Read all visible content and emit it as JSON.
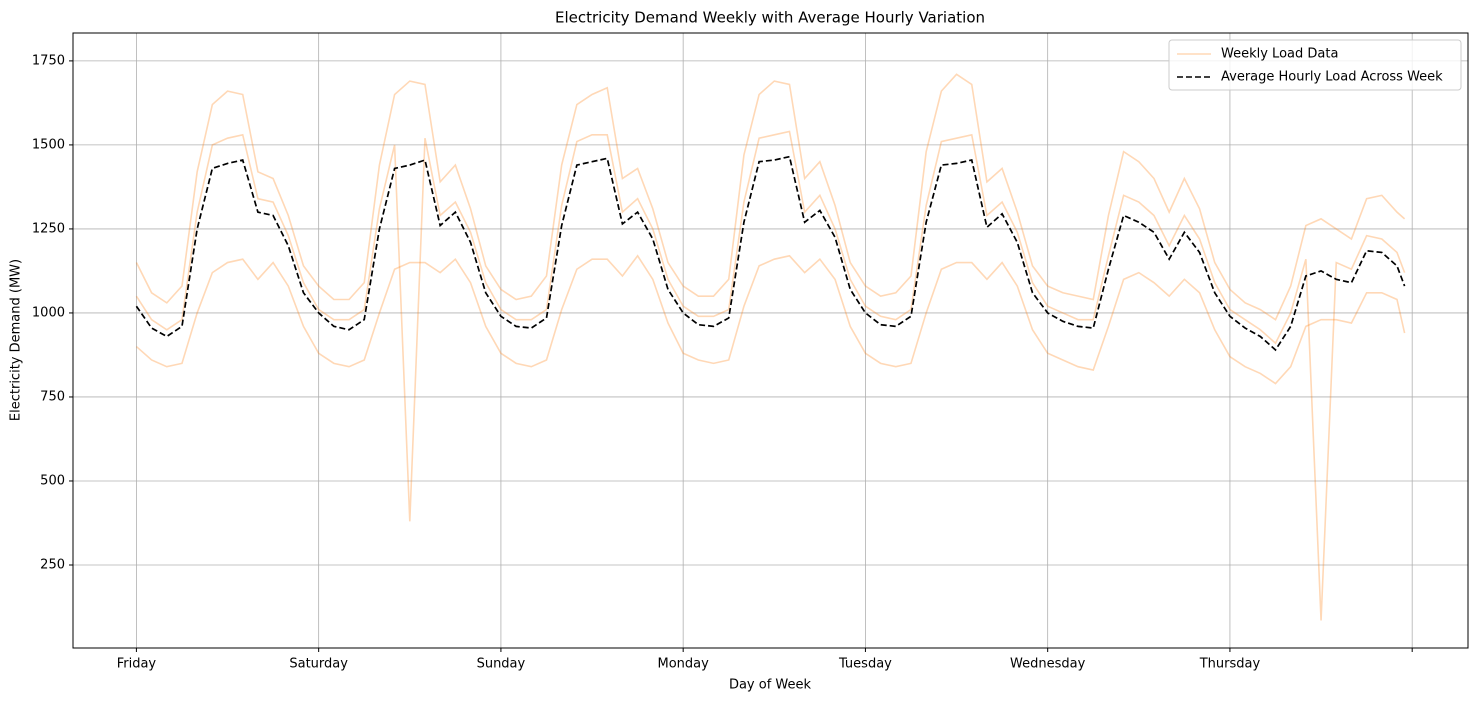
{
  "chart_data": {
    "type": "line",
    "title": "Electricity Demand Weekly with Average Hourly Variation",
    "xlabel": "Day of Week",
    "ylabel": "Electricity Demand (MW)",
    "x": [
      0,
      2,
      4,
      6,
      8,
      10,
      12,
      14,
      16,
      18,
      20,
      22,
      24,
      26,
      28,
      30,
      32,
      34,
      36,
      38,
      40,
      42,
      44,
      46,
      48,
      50,
      52,
      54,
      56,
      58,
      60,
      62,
      64,
      66,
      68,
      70,
      72,
      74,
      76,
      78,
      80,
      82,
      84,
      86,
      88,
      90,
      92,
      94,
      96,
      98,
      100,
      102,
      104,
      106,
      108,
      110,
      112,
      114,
      116,
      118,
      120,
      122,
      124,
      126,
      128,
      130,
      132,
      134,
      136,
      138,
      140,
      142,
      144,
      146,
      148,
      150,
      152,
      154,
      156,
      158,
      160,
      162,
      164,
      166,
      167
    ],
    "xlim": [
      -8.35,
      175.35
    ],
    "xticks": [
      {
        "value": 0,
        "label": "Friday"
      },
      {
        "value": 24,
        "label": "Saturday"
      },
      {
        "value": 48,
        "label": "Sunday"
      },
      {
        "value": 72,
        "label": "Monday"
      },
      {
        "value": 96,
        "label": "Tuesday"
      },
      {
        "value": 120,
        "label": "Wednesday"
      },
      {
        "value": 144,
        "label": "Thursday"
      },
      {
        "value": 168,
        "label": null
      }
    ],
    "ylim": [
      3,
      1833
    ],
    "yticks": [
      250,
      500,
      750,
      1000,
      1250,
      1500,
      1750
    ],
    "grid": true,
    "legend": "upper right",
    "series": [
      {
        "name": "Weekly Load Data",
        "color": "#ff7f0e",
        "opacity": 0.3,
        "values": [
          [
            1150,
            1060,
            1030,
            1080,
            1420,
            1620,
            1660,
            1650,
            1420,
            1400,
            1290,
            1140,
            1080,
            1040,
            1040,
            1090,
            1440,
            1650,
            1690,
            1680,
            1390,
            1440,
            1310,
            1140,
            1070,
            1040,
            1050,
            1110,
            1440,
            1620,
            1650,
            1670,
            1400,
            1430,
            1310,
            1150,
            1080,
            1050,
            1050,
            1100,
            1470,
            1650,
            1690,
            1680,
            1400,
            1450,
            1320,
            1150,
            1080,
            1050,
            1060,
            1110,
            1480,
            1660,
            1710,
            1680,
            1390,
            1430,
            1300,
            1140,
            1080,
            1060,
            1050,
            1040,
            1290,
            1480,
            1450,
            1400,
            1300,
            1400,
            1310,
            1150,
            1070,
            1030,
            1010,
            980,
            1080,
            1260,
            1280,
            1250,
            1220,
            1340,
            1350,
            1300,
            1280
          ],
          [
            900,
            860,
            840,
            850,
            1000,
            1120,
            1150,
            1160,
            1100,
            1150,
            1080,
            960,
            880,
            850,
            840,
            860,
            1000,
            1130,
            1150,
            1150,
            1120,
            1160,
            1090,
            960,
            880,
            850,
            840,
            860,
            1010,
            1130,
            1160,
            1160,
            1110,
            1170,
            1100,
            970,
            880,
            860,
            850,
            860,
            1020,
            1140,
            1160,
            1170,
            1120,
            1160,
            1100,
            960,
            880,
            850,
            840,
            850,
            1000,
            1130,
            1150,
            1150,
            1100,
            1150,
            1080,
            950,
            880,
            860,
            840,
            830,
            960,
            1100,
            1120,
            1090,
            1050,
            1100,
            1060,
            950,
            870,
            840,
            820,
            790,
            840,
            960,
            980,
            980,
            970,
            1060,
            1060,
            1040,
            940
          ],
          [
            1050,
            980,
            950,
            980,
            1300,
            1500,
            1520,
            1530,
            1340,
            1330,
            1230,
            1090,
            1010,
            980,
            980,
            1010,
            1310,
            1500,
            380,
            1520,
            1290,
            1330,
            1240,
            1090,
            1010,
            980,
            980,
            1010,
            1320,
            1510,
            1530,
            1530,
            1300,
            1340,
            1250,
            1100,
            1020,
            990,
            990,
            1010,
            1330,
            1520,
            1530,
            1540,
            1300,
            1350,
            1250,
            1100,
            1020,
            990,
            980,
            1010,
            1320,
            1510,
            1520,
            1530,
            1290,
            1330,
            1240,
            1090,
            1020,
            1000,
            980,
            980,
            1170,
            1350,
            1330,
            1290,
            1200,
            1290,
            1220,
            1090,
            1010,
            980,
            950,
            910,
            1000,
            1160,
            85,
            1150,
            1130,
            1230,
            1220,
            1180,
            1120
          ]
        ]
      },
      {
        "name": "Average Hourly Load Across Week",
        "color": "#000000",
        "dashed": true,
        "values": [
          1020,
          955,
          930,
          960,
          1250,
          1430,
          1445,
          1455,
          1300,
          1290,
          1200,
          1060,
          1000,
          960,
          950,
          980,
          1250,
          1430,
          1440,
          1455,
          1260,
          1300,
          1210,
          1060,
          990,
          960,
          955,
          985,
          1260,
          1440,
          1450,
          1460,
          1265,
          1300,
          1220,
          1070,
          1000,
          965,
          960,
          985,
          1270,
          1450,
          1455,
          1465,
          1270,
          1305,
          1225,
          1070,
          1000,
          965,
          960,
          990,
          1270,
          1440,
          1445,
          1455,
          1255,
          1295,
          1210,
          1060,
          1000,
          975,
          960,
          955,
          1130,
          1290,
          1270,
          1240,
          1160,
          1240,
          1180,
          1060,
          990,
          955,
          930,
          890,
          960,
          1110,
          1125,
          1100,
          1090,
          1185,
          1180,
          1140,
          1080
        ]
      }
    ]
  }
}
